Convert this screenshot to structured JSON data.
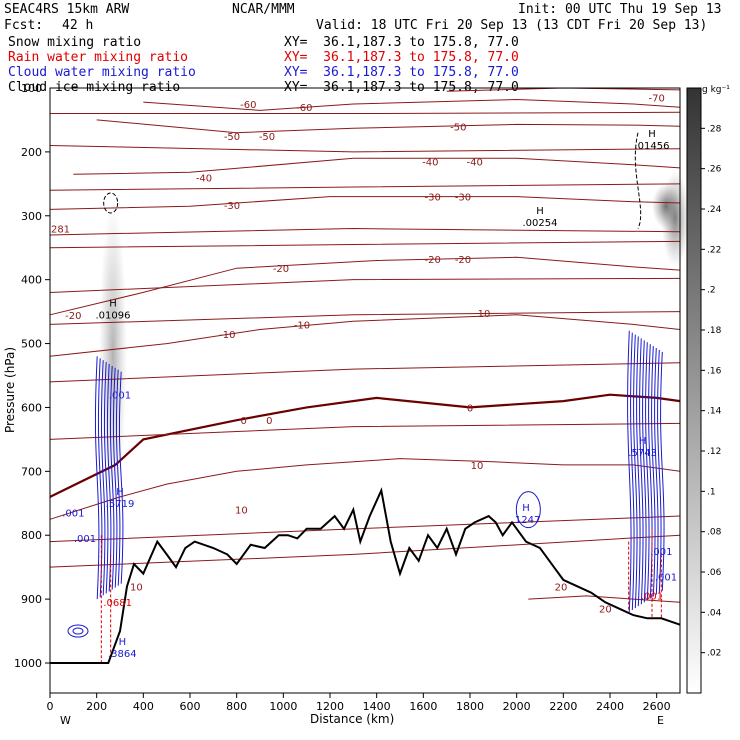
{
  "header": {
    "title": "SEAC4RS 15km ARW",
    "center": "NCAR/MMM",
    "init": "Init: 00 UTC Thu 19 Sep 13",
    "fcst_label": "Fcst:",
    "fcst_value": "42 h",
    "valid": "Valid: 18 UTC Fri 20 Sep 13 (13 CDT Fri 20 Sep 13)"
  },
  "fields": [
    {
      "name": "Snow mixing ratio",
      "xy": "XY=  36.1,187.3 to 175.8, 77.0",
      "color": "#000000"
    },
    {
      "name": "Rain water mixing ratio",
      "xy": "XY=  36.1,187.3 to 175.8, 77.0",
      "color": "#e00000"
    },
    {
      "name": "Cloud water mixing ratio",
      "xy": "XY=  36.1,187.3 to 175.8, 77.0",
      "color": "#1a1ad0"
    },
    {
      "name": "Cloud ice mixing ratio",
      "xy": "XY=  36.1,187.3 to 175.8, 77.0",
      "color": "#000000"
    }
  ],
  "colors": {
    "temperature": "#8b1a1a",
    "zero_isotherm": "#6b0000",
    "terrain": "#000000",
    "rain": "#e00000",
    "cloud_water": "#1a1ad0"
  },
  "chart_data": {
    "type": "cross-section",
    "xlabel": "Distance (km)",
    "ylabel": "Pressure (hPa)",
    "xlim": [
      0,
      2700
    ],
    "ylim": [
      1000,
      100
    ],
    "x_ticks": [
      0,
      200,
      400,
      600,
      800,
      1000,
      1200,
      1400,
      1600,
      1800,
      2000,
      2200,
      2400,
      2600
    ],
    "y_ticks": [
      200,
      300,
      400,
      500,
      600,
      700,
      800,
      900,
      1000
    ],
    "y_tick_100": "100",
    "x_end_labels": {
      "west": "W",
      "east": "E"
    },
    "colorbar": {
      "unit": "g kg⁻¹",
      "ticks": [
        ".28",
        ".26",
        ".24",
        ".22",
        ".2",
        ".18",
        ".16",
        ".14",
        ".12",
        ".1",
        ".08",
        ".06",
        ".04",
        ".02"
      ],
      "values": [
        0.28,
        0.26,
        0.24,
        0.22,
        0.2,
        0.18,
        0.16,
        0.14,
        0.12,
        0.1,
        0.08,
        0.06,
        0.04,
        0.02
      ],
      "range": [
        0,
        0.3
      ]
    },
    "terrain_km_hpa": [
      [
        0,
        1000
      ],
      [
        250,
        1000
      ],
      [
        300,
        950
      ],
      [
        330,
        880
      ],
      [
        360,
        845
      ],
      [
        400,
        860
      ],
      [
        460,
        810
      ],
      [
        500,
        830
      ],
      [
        540,
        850
      ],
      [
        580,
        820
      ],
      [
        620,
        810
      ],
      [
        700,
        820
      ],
      [
        760,
        830
      ],
      [
        800,
        845
      ],
      [
        860,
        815
      ],
      [
        920,
        820
      ],
      [
        980,
        800
      ],
      [
        1020,
        800
      ],
      [
        1060,
        805
      ],
      [
        1100,
        790
      ],
      [
        1160,
        790
      ],
      [
        1220,
        770
      ],
      [
        1260,
        790
      ],
      [
        1300,
        760
      ],
      [
        1330,
        810
      ],
      [
        1370,
        770
      ],
      [
        1420,
        730
      ],
      [
        1460,
        810
      ],
      [
        1500,
        860
      ],
      [
        1540,
        820
      ],
      [
        1580,
        840
      ],
      [
        1620,
        800
      ],
      [
        1660,
        820
      ],
      [
        1700,
        790
      ],
      [
        1740,
        830
      ],
      [
        1780,
        790
      ],
      [
        1820,
        780
      ],
      [
        1880,
        770
      ],
      [
        1910,
        780
      ],
      [
        1940,
        800
      ],
      [
        1980,
        780
      ],
      [
        2040,
        810
      ],
      [
        2100,
        820
      ],
      [
        2160,
        850
      ],
      [
        2200,
        870
      ],
      [
        2260,
        880
      ],
      [
        2320,
        890
      ],
      [
        2380,
        905
      ],
      [
        2440,
        915
      ],
      [
        2500,
        925
      ],
      [
        2560,
        930
      ],
      [
        2620,
        930
      ],
      [
        2700,
        940
      ]
    ],
    "isotherms": [
      {
        "label": "-70",
        "points": [
          [
            1700,
            105
          ],
          [
            2200,
            100
          ],
          [
            2700,
            103
          ]
        ]
      },
      {
        "label": "-60",
        "points": [
          [
            400,
            122
          ],
          [
            900,
            135
          ],
          [
            1300,
            125
          ],
          [
            2000,
            118
          ],
          [
            2500,
            125
          ],
          [
            2700,
            130
          ]
        ]
      },
      {
        "label": "-50",
        "points": [
          [
            200,
            150
          ],
          [
            800,
            170
          ],
          [
            1300,
            163
          ],
          [
            2000,
            157
          ],
          [
            2500,
            158
          ],
          [
            2700,
            160
          ]
        ]
      },
      {
        "label": "-40",
        "points": [
          [
            100,
            235
          ],
          [
            600,
            232
          ],
          [
            1300,
            210
          ],
          [
            2000,
            210
          ],
          [
            2500,
            220
          ],
          [
            2700,
            225
          ]
        ]
      },
      {
        "label": "-30",
        "points": [
          [
            0,
            290
          ],
          [
            600,
            285
          ],
          [
            1200,
            270
          ],
          [
            2000,
            270
          ],
          [
            2500,
            278
          ],
          [
            2700,
            280
          ]
        ]
      },
      {
        "label": "-20",
        "points": [
          [
            0,
            455
          ],
          [
            400,
            420
          ],
          [
            800,
            382
          ],
          [
            1400,
            370
          ],
          [
            2000,
            365
          ],
          [
            2500,
            380
          ],
          [
            2700,
            385
          ]
        ]
      },
      {
        "label": "-10",
        "points": [
          [
            0,
            520
          ],
          [
            500,
            500
          ],
          [
            900,
            478
          ],
          [
            1300,
            465
          ],
          [
            2000,
            455
          ],
          [
            2500,
            470
          ],
          [
            2700,
            478
          ]
        ]
      },
      {
        "label": "0",
        "points": [
          [
            0,
            740
          ],
          [
            280,
            690
          ],
          [
            400,
            650
          ],
          [
            800,
            620
          ],
          [
            1100,
            600
          ],
          [
            1400,
            585
          ],
          [
            1800,
            600
          ],
          [
            2200,
            590
          ],
          [
            2400,
            580
          ],
          [
            2600,
            585
          ],
          [
            2700,
            590
          ]
        ]
      },
      {
        "label": "10",
        "points": [
          [
            0,
            775
          ],
          [
            300,
            740
          ],
          [
            500,
            720
          ],
          [
            800,
            700
          ],
          [
            1100,
            690
          ],
          [
            1500,
            680
          ],
          [
            1900,
            685
          ],
          [
            2200,
            690
          ],
          [
            2500,
            690
          ],
          [
            2700,
            700
          ]
        ]
      },
      {
        "label": "20",
        "points": [
          [
            2050,
            900
          ],
          [
            2300,
            895
          ],
          [
            2500,
            900
          ],
          [
            2700,
            905
          ]
        ]
      }
    ],
    "contour_labels": [
      {
        "text": "-70",
        "x": 2600,
        "y": 115
      },
      {
        "text": "-60",
        "x": 850,
        "y": 125
      },
      {
        "text": "-60",
        "x": 1090,
        "y": 130
      },
      {
        "text": "-50",
        "x": 780,
        "y": 175
      },
      {
        "text": "-50",
        "x": 930,
        "y": 175
      },
      {
        "text": "-50",
        "x": 1750,
        "y": 160
      },
      {
        "text": "-40",
        "x": 660,
        "y": 240
      },
      {
        "text": "-40",
        "x": 1630,
        "y": 215
      },
      {
        "text": "-40",
        "x": 1820,
        "y": 215
      },
      {
        "text": "-30",
        "x": 780,
        "y": 283
      },
      {
        "text": "-30",
        "x": 1640,
        "y": 270
      },
      {
        "text": "-30",
        "x": 1770,
        "y": 270
      },
      {
        "text": "-20",
        "x": 100,
        "y": 455
      },
      {
        "text": "-20",
        "x": 990,
        "y": 382
      },
      {
        "text": "-20",
        "x": 1640,
        "y": 368
      },
      {
        "text": "-20",
        "x": 1770,
        "y": 368
      },
      {
        "text": "-10",
        "x": 760,
        "y": 485
      },
      {
        "text": "-10",
        "x": 1080,
        "y": 470
      },
      {
        "text": "10",
        "x": 1860,
        "y": 452
      },
      {
        "text": "0",
        "x": 830,
        "y": 620
      },
      {
        "text": "0",
        "x": 940,
        "y": 620
      },
      {
        "text": "0",
        "x": 1800,
        "y": 600
      },
      {
        "text": "10",
        "x": 820,
        "y": 760
      },
      {
        "text": "10",
        "x": 1830,
        "y": 690
      },
      {
        "text": "10",
        "x": 370,
        "y": 880
      },
      {
        "text": "20",
        "x": 2190,
        "y": 880
      },
      {
        "text": "20",
        "x": 2380,
        "y": 915
      },
      {
        "text": "281",
        "x": 45,
        "y": 320
      }
    ],
    "extrema": [
      {
        "kind": "H",
        "value": ".01096",
        "x": 270,
        "y": 445,
        "color": "#000000"
      },
      {
        "kind": "H",
        "value": ".00254",
        "x": 2100,
        "y": 300,
        "color": "#000000"
      },
      {
        "kind": "H",
        "value": ".01456",
        "x": 2580,
        "y": 180,
        "color": "#000000"
      },
      {
        "kind": "H",
        "value": ".5719",
        "x": 300,
        "y": 740,
        "color": "#1a1ad0"
      },
      {
        "kind": "H",
        "value": ".1247",
        "x": 2040,
        "y": 765,
        "color": "#1a1ad0"
      },
      {
        "kind": "H",
        "value": ".5743",
        "x": 2540,
        "y": 660,
        "color": "#1a1ad0"
      },
      {
        "kind": "H",
        "value": ".3864",
        "x": 310,
        "y": 975,
        "color": "#1a1ad0"
      },
      {
        "kind": "",
        "value": ".0681",
        "x": 290,
        "y": 895,
        "color": "#e00000"
      },
      {
        "kind": "",
        "value": ".001",
        "x": 300,
        "y": 570,
        "color": "#1a1ad0"
      },
      {
        "kind": "",
        "value": ".001",
        "x": 100,
        "y": 755,
        "color": "#1a1ad0"
      },
      {
        "kind": "",
        "value": ".001",
        "x": 150,
        "y": 795,
        "color": "#1a1ad0"
      },
      {
        "kind": "",
        "value": ".001",
        "x": 2620,
        "y": 815,
        "color": "#1a1ad0"
      },
      {
        "kind": "",
        "value": ".001",
        "x": 2640,
        "y": 855,
        "color": "#1a1ad0"
      },
      {
        "kind": "",
        "value": ".001",
        "x": 2580,
        "y": 885,
        "color": "#e00000"
      }
    ],
    "cloud_ice_shading": [
      {
        "x": 270,
        "p_top": 280,
        "p_bot": 750,
        "max": 0.14
      },
      {
        "x": 2640,
        "p_top": 250,
        "p_bot": 320,
        "max": 0.26
      },
      {
        "x": 2680,
        "p_top": 230,
        "p_bot": 380,
        "max": 0.22
      }
    ]
  }
}
